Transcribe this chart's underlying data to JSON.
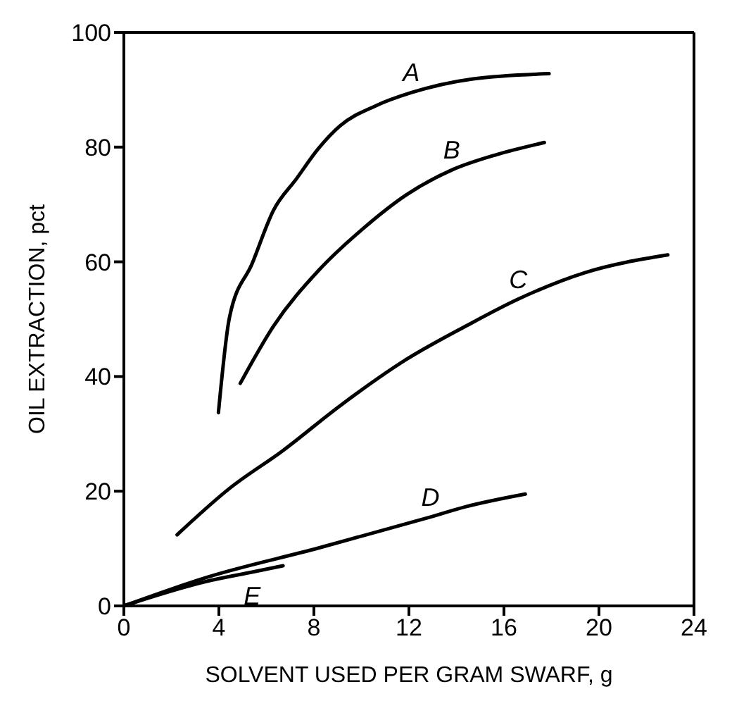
{
  "chart_data": {
    "type": "line",
    "xlabel": "SOLVENT USED PER GRAM SWARF, g",
    "ylabel": "OIL EXTRACTION, pct",
    "xlim": [
      0,
      24
    ],
    "xticks": [
      0,
      4,
      8,
      12,
      16,
      20,
      24
    ],
    "ylim": [
      0,
      100
    ],
    "yticks": [
      0,
      20,
      40,
      60,
      80,
      100
    ],
    "marker": "none",
    "line_style": "solid",
    "series": [
      {
        "name": "A",
        "color": "#000000",
        "x": [
          3.98,
          4.45,
          5.4,
          6.3,
          7.25,
          8.2,
          9.1,
          10.6,
          12.1,
          14.7,
          17.9
        ],
        "values": [
          33.7,
          50.4,
          59.7,
          69,
          74.4,
          79.8,
          83.7,
          87.2,
          89.5,
          91.9,
          92.8
        ]
      },
      {
        "name": "B",
        "color": "#000000",
        "x": [
          4.9,
          6.3,
          8.2,
          10.1,
          11.9,
          13.8,
          15.7,
          17.7
        ],
        "values": [
          38.8,
          48.8,
          58.5,
          65.9,
          71.7,
          76,
          78.7,
          80.8
        ]
      },
      {
        "name": "C",
        "color": "#000000",
        "x": [
          2.24,
          4.45,
          6.7,
          9.1,
          11.9,
          14.4,
          16.6,
          19.4,
          22.9
        ],
        "values": [
          12.4,
          20.5,
          27.1,
          34.9,
          43,
          48.8,
          53.5,
          58.1,
          61.2
        ]
      },
      {
        "name": "D",
        "color": "#000000",
        "x": [
          0,
          3.5,
          8.2,
          12.9,
          14.4,
          16.9
        ],
        "values": [
          0,
          5,
          10.1,
          15.5,
          17.3,
          19.5
        ]
      },
      {
        "name": "E",
        "color": "#000000",
        "x": [
          0,
          3.5,
          5.4,
          6.7
        ],
        "values": [
          0,
          4.3,
          5.9,
          7
        ]
      }
    ]
  }
}
